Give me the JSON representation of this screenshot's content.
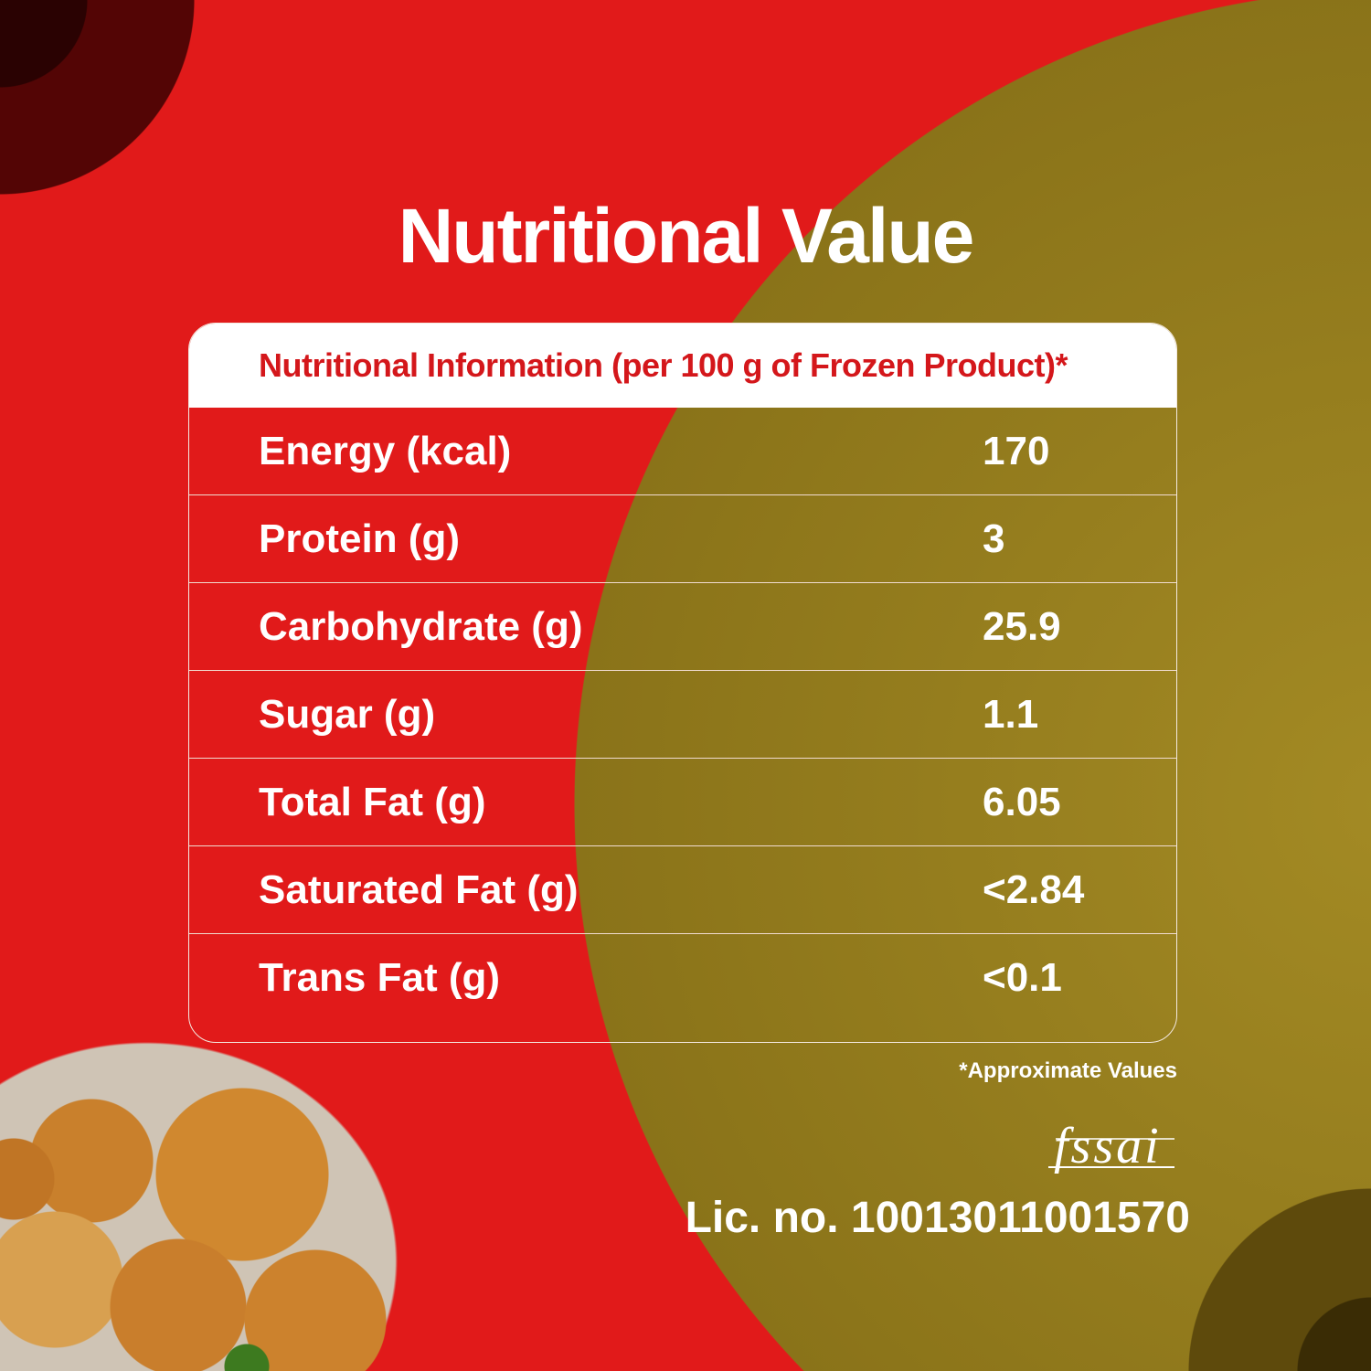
{
  "title": "Nutritional Value",
  "table": {
    "header": "Nutritional Information (per 100 g of Frozen Product)*",
    "rows": [
      {
        "label": "Energy (kcal)",
        "value": "170"
      },
      {
        "label": "Protein (g)",
        "value": "3"
      },
      {
        "label": "Carbohydrate (g)",
        "value": "25.9"
      },
      {
        "label": "Sugar (g)",
        "value": "1.1"
      },
      {
        "label": "Total Fat (g)",
        "value": "6.05"
      },
      {
        "label": "Saturated Fat (g)",
        "value": "<2.84"
      },
      {
        "label": "Trans Fat (g)",
        "value": "<0.1"
      }
    ]
  },
  "footnote": "*Approximate Values",
  "logo": "fssai",
  "license": "Lic. no. 10013011001570",
  "colors": {
    "red": "#e11a1a",
    "olive": "#9a801f",
    "dark_red": "#520606"
  }
}
